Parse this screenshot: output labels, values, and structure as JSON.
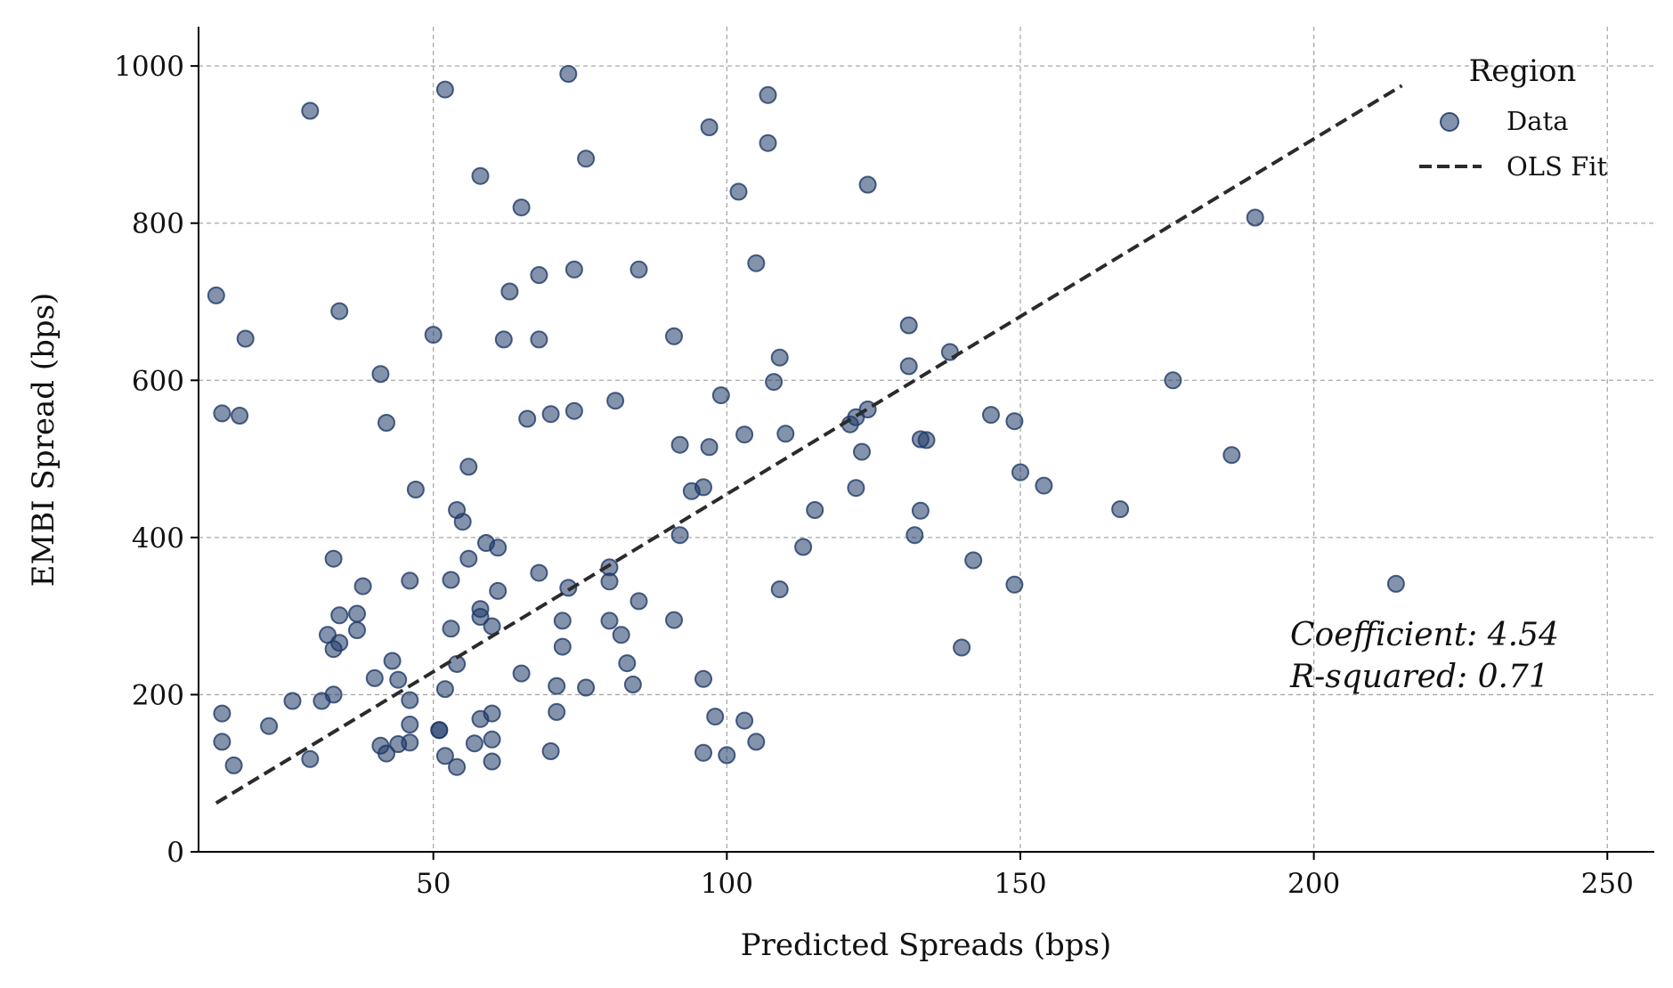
{
  "chart_data": {
    "type": "scatter",
    "xlabel": "Predicted Spreads (bps)",
    "ylabel": "EMBI Spread (bps)",
    "xlim": [
      10,
      258
    ],
    "ylim": [
      0,
      1050
    ],
    "xticks": [
      50,
      100,
      150,
      200,
      250
    ],
    "yticks": [
      0,
      200,
      400,
      600,
      800,
      1000
    ],
    "grid": true,
    "legend": {
      "title": "Region",
      "placement": "top-right",
      "entries": [
        {
          "label": "Data",
          "kind": "marker"
        },
        {
          "label": "OLS Fit",
          "kind": "dashed-line"
        }
      ]
    },
    "annotations": [
      "Coefficient: 4.54",
      "R-squared: 0.71"
    ],
    "colors": {
      "points": "#1f3a68",
      "fit": "#2b2b2b"
    },
    "fit_line": {
      "x": [
        13,
        215
      ],
      "y": [
        62,
        975
      ]
    },
    "series": [
      {
        "name": "Data",
        "points": [
          [
            13,
            708
          ],
          [
            14,
            558
          ],
          [
            14,
            176
          ],
          [
            14,
            140
          ],
          [
            16,
            110
          ],
          [
            17,
            555
          ],
          [
            18,
            653
          ],
          [
            22,
            160
          ],
          [
            26,
            192
          ],
          [
            29,
            118
          ],
          [
            29,
            943
          ],
          [
            31,
            192
          ],
          [
            32,
            276
          ],
          [
            33,
            200
          ],
          [
            33,
            373
          ],
          [
            33,
            258
          ],
          [
            34,
            301
          ],
          [
            34,
            266
          ],
          [
            34,
            688
          ],
          [
            37,
            282
          ],
          [
            37,
            303
          ],
          [
            38,
            338
          ],
          [
            40,
            221
          ],
          [
            41,
            608
          ],
          [
            41,
            135
          ],
          [
            42,
            546
          ],
          [
            42,
            125
          ],
          [
            43,
            243
          ],
          [
            44,
            219
          ],
          [
            44,
            137
          ],
          [
            46,
            193
          ],
          [
            46,
            139
          ],
          [
            46,
            345
          ],
          [
            46,
            162
          ],
          [
            47,
            461
          ],
          [
            50,
            658
          ],
          [
            51,
            155
          ],
          [
            51,
            155
          ],
          [
            52,
            207
          ],
          [
            52,
            970
          ],
          [
            52,
            122
          ],
          [
            53,
            284
          ],
          [
            53,
            346
          ],
          [
            54,
            239
          ],
          [
            54,
            435
          ],
          [
            54,
            108
          ],
          [
            55,
            420
          ],
          [
            56,
            373
          ],
          [
            56,
            490
          ],
          [
            57,
            138
          ],
          [
            58,
            299
          ],
          [
            58,
            860
          ],
          [
            58,
            309
          ],
          [
            58,
            169
          ],
          [
            59,
            393
          ],
          [
            60,
            176
          ],
          [
            60,
            143
          ],
          [
            60,
            287
          ],
          [
            60,
            115
          ],
          [
            61,
            332
          ],
          [
            61,
            387
          ],
          [
            62,
            652
          ],
          [
            63,
            713
          ],
          [
            65,
            227
          ],
          [
            65,
            820
          ],
          [
            66,
            551
          ],
          [
            68,
            355
          ],
          [
            68,
            734
          ],
          [
            68,
            652
          ],
          [
            70,
            128
          ],
          [
            70,
            557
          ],
          [
            71,
            178
          ],
          [
            71,
            211
          ],
          [
            72,
            261
          ],
          [
            72,
            294
          ],
          [
            73,
            336
          ],
          [
            73,
            990
          ],
          [
            74,
            741
          ],
          [
            74,
            561
          ],
          [
            76,
            209
          ],
          [
            76,
            882
          ],
          [
            80,
            362
          ],
          [
            80,
            294
          ],
          [
            80,
            344
          ],
          [
            81,
            574
          ],
          [
            82,
            276
          ],
          [
            83,
            240
          ],
          [
            84,
            213
          ],
          [
            85,
            319
          ],
          [
            85,
            741
          ],
          [
            91,
            295
          ],
          [
            91,
            656
          ],
          [
            92,
            518
          ],
          [
            92,
            403
          ],
          [
            94,
            459
          ],
          [
            96,
            126
          ],
          [
            96,
            220
          ],
          [
            96,
            464
          ],
          [
            97,
            922
          ],
          [
            97,
            515
          ],
          [
            98,
            172
          ],
          [
            99,
            581
          ],
          [
            100,
            123
          ],
          [
            102,
            840
          ],
          [
            103,
            167
          ],
          [
            103,
            531
          ],
          [
            105,
            140
          ],
          [
            105,
            749
          ],
          [
            107,
            963
          ],
          [
            107,
            902
          ],
          [
            108,
            598
          ],
          [
            109,
            334
          ],
          [
            109,
            629
          ],
          [
            110,
            532
          ],
          [
            113,
            388
          ],
          [
            115,
            435
          ],
          [
            121,
            544
          ],
          [
            122,
            463
          ],
          [
            122,
            553
          ],
          [
            123,
            509
          ],
          [
            124,
            563
          ],
          [
            124,
            849
          ],
          [
            131,
            670
          ],
          [
            131,
            618
          ],
          [
            132,
            403
          ],
          [
            133,
            434
          ],
          [
            133,
            525
          ],
          [
            134,
            524
          ],
          [
            138,
            636
          ],
          [
            140,
            260
          ],
          [
            142,
            371
          ],
          [
            145,
            556
          ],
          [
            149,
            548
          ],
          [
            149,
            340
          ],
          [
            150,
            483
          ],
          [
            154,
            466
          ],
          [
            167,
            436
          ],
          [
            176,
            600
          ],
          [
            186,
            505
          ],
          [
            190,
            807
          ],
          [
            214,
            341
          ]
        ]
      }
    ]
  }
}
